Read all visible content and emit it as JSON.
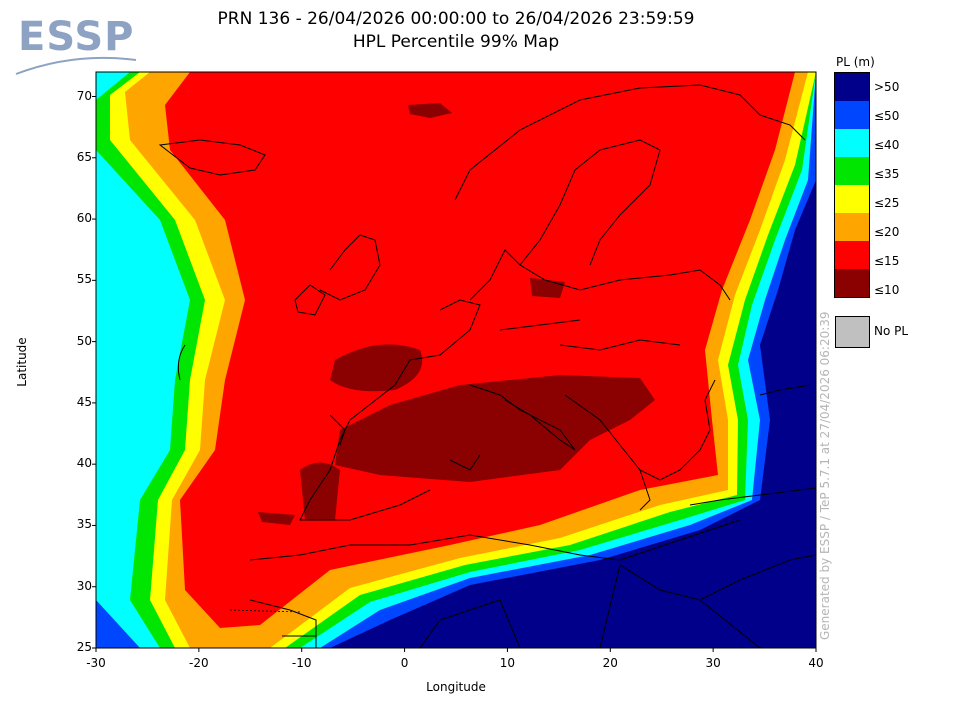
{
  "header": {
    "title_line1": "PRN 136 - 26/04/2026 00:00:00 to 26/04/2026 23:59:59",
    "title_line2": "HPL Percentile 99% Map"
  },
  "logo": {
    "text": "ESSP"
  },
  "axes": {
    "xlabel": "Longitude",
    "ylabel": "Latitude",
    "xlim": [
      -30,
      40
    ],
    "ylim": [
      25,
      72
    ],
    "xticks": [
      "-30",
      "-20",
      "-10",
      "0",
      "10",
      "20",
      "30",
      "40"
    ],
    "yticks": [
      "70",
      "65",
      "60",
      "55",
      "50",
      "45",
      "40",
      "35",
      "30",
      "25"
    ]
  },
  "legend": {
    "title": "PL (m)",
    "items": [
      {
        "label": ">50",
        "color": "#00008b"
      },
      {
        "label": "≤50",
        "color": "#0046ff"
      },
      {
        "label": "≤40",
        "color": "#00ffff"
      },
      {
        "label": "≤35",
        "color": "#00e600"
      },
      {
        "label": "≤25",
        "color": "#ffff00"
      },
      {
        "label": "≤20",
        "color": "#ffa500"
      },
      {
        "label": "≤15",
        "color": "#ff0000"
      },
      {
        "label": "≤10",
        "color": "#8b0000"
      }
    ],
    "nopl": {
      "label": "No PL",
      "color": "#c0c0c0"
    }
  },
  "watermark": "Generated by ESSP / TeP 5.7.1 at 27/04/2026 06:20:39"
}
